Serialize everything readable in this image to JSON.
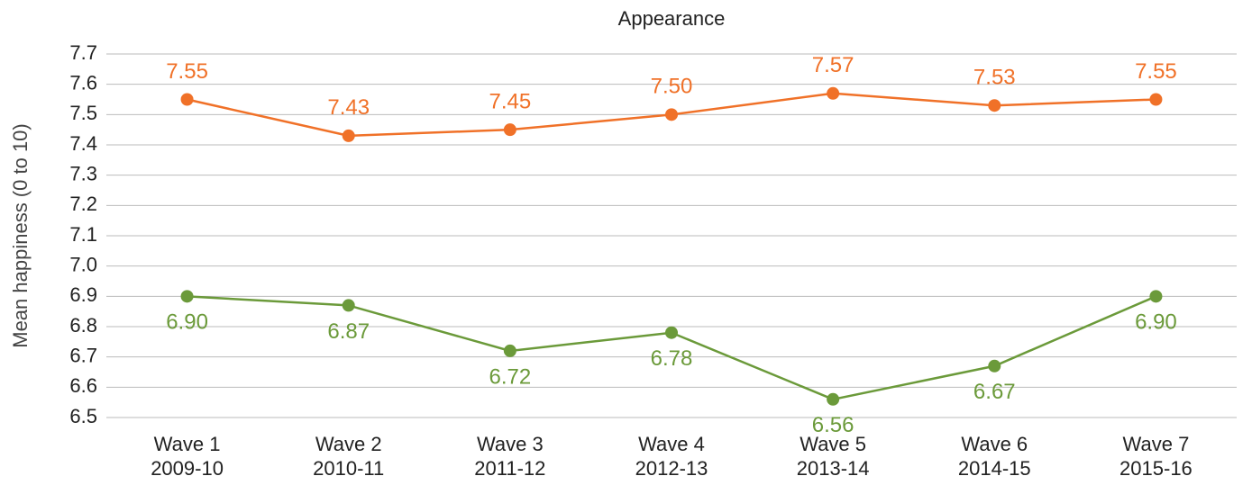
{
  "chart_data": {
    "type": "line",
    "title": "Appearance",
    "y_label": "Mean happiness (0 to 10)",
    "categories": [
      [
        "Wave 1",
        "2009-10"
      ],
      [
        "Wave 2",
        "2010-11"
      ],
      [
        "Wave 3",
        "2011-12"
      ],
      [
        "Wave 4",
        "2012-13"
      ],
      [
        "Wave 5",
        "2013-14"
      ],
      [
        "Wave 6",
        "2014-15"
      ],
      [
        "Wave 7",
        "2015-16"
      ]
    ],
    "series": [
      {
        "color": "#f07128",
        "values": [
          7.55,
          7.43,
          7.45,
          7.5,
          7.57,
          7.53,
          7.55
        ],
        "value_labels": [
          "7.55",
          "7.43",
          "7.45",
          "7.50",
          "7.57",
          "7.53",
          "7.55"
        ]
      },
      {
        "color": "#6b9a3a",
        "values": [
          6.9,
          6.87,
          6.72,
          6.78,
          6.56,
          6.67,
          6.9
        ],
        "value_labels": [
          "6.90",
          "6.87",
          "6.72",
          "6.78",
          "6.56",
          "6.67",
          "6.90"
        ]
      }
    ],
    "ylim": [
      6.5,
      7.7
    ],
    "yticks": [
      6.5,
      6.6,
      6.7,
      6.8,
      6.9,
      {
        "value": 7,
        "label": "7.0"
      },
      7.1,
      7.2,
      7.3,
      7.4,
      7.5,
      7.6,
      7.7
    ],
    "grid": true
  }
}
